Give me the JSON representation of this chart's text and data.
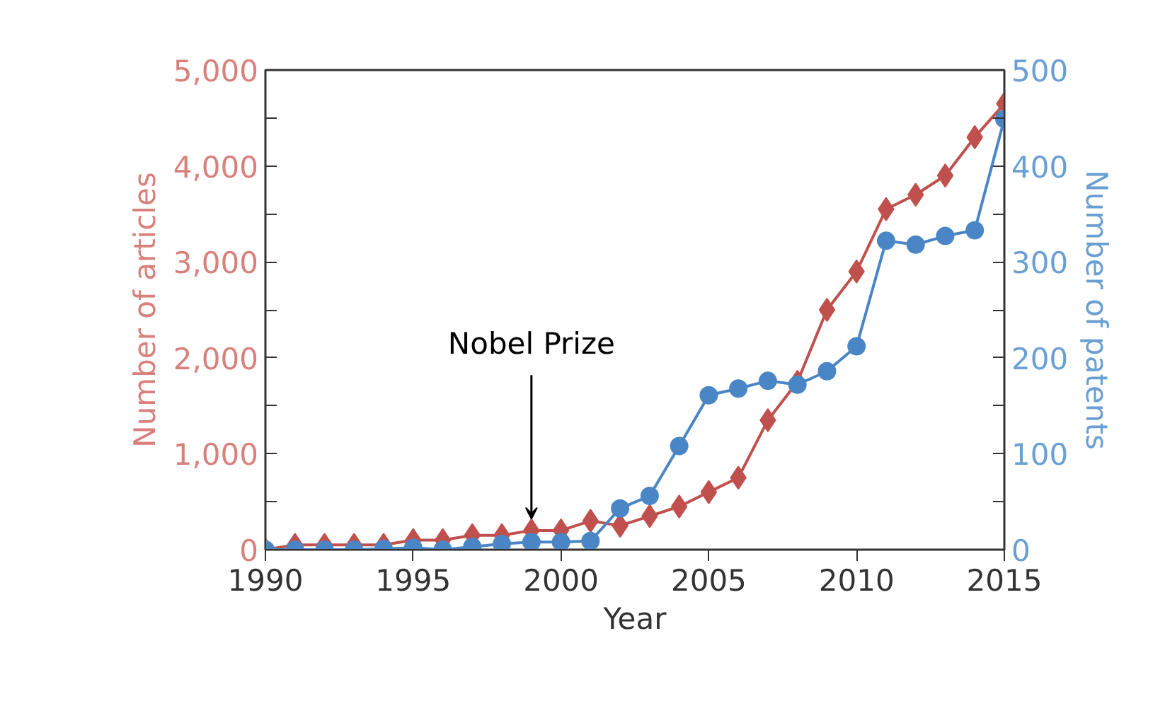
{
  "chart_data": {
    "type": "line",
    "xlabel": "Year",
    "ylabel": "Number of articles",
    "y2label": "Number of patents",
    "x": [
      1990,
      1991,
      1992,
      1993,
      1994,
      1995,
      1996,
      1997,
      1998,
      1999,
      2000,
      2001,
      2002,
      2003,
      2004,
      2005,
      2006,
      2007,
      2008,
      2009,
      2010,
      2011,
      2012,
      2013,
      2014,
      2015
    ],
    "series": [
      {
        "color": "#c0504d",
        "marker": "diamond",
        "values": [
          0,
          50,
          50,
          50,
          50,
          100,
          100,
          150,
          150,
          200,
          200,
          300,
          250,
          350,
          450,
          600,
          750,
          1350,
          1750,
          2500,
          2900,
          3550,
          3700,
          3900,
          4300,
          4650
        ]
      },
      {
        "color": "#4a86c5",
        "marker": "circle",
        "axis": "y2",
        "values": [
          0,
          0,
          0,
          0,
          1,
          2,
          0,
          3,
          6,
          8,
          8,
          9,
          43,
          56,
          108,
          161,
          168,
          176,
          172,
          186,
          212,
          322,
          318,
          327,
          333,
          449
        ]
      }
    ],
    "xlim": [
      1990,
      2015
    ],
    "xticks": [
      1990,
      1995,
      2000,
      2005,
      2010,
      2015
    ],
    "ylim": [
      0,
      5000
    ],
    "yticks": [
      0,
      {
        "value": 500,
        "label": null
      },
      {
        "value": 1000,
        "label": "1,000"
      },
      {
        "value": 1500,
        "label": null
      },
      {
        "value": 2000,
        "label": "2,000"
      },
      {
        "value": 2500,
        "label": null
      },
      {
        "value": 3000,
        "label": "3,000"
      },
      {
        "value": 3500,
        "label": null
      },
      {
        "value": 4000,
        "label": "4,000"
      },
      {
        "value": 4500,
        "label": null
      },
      {
        "value": 5000,
        "label": "5,000"
      }
    ],
    "y2lim": [
      0,
      500
    ],
    "y2ticks": [
      0,
      {
        "value": 50,
        "label": null
      },
      100,
      {
        "value": 150,
        "label": null
      },
      200,
      {
        "value": 250,
        "label": null
      },
      300,
      {
        "value": 350,
        "label": null
      },
      400,
      {
        "value": 450,
        "label": null
      },
      500
    ],
    "annotations": [
      {
        "text": "Nobel Prize",
        "x": 1999,
        "y": 320
      }
    ],
    "grid": false,
    "line_style": "solid"
  }
}
